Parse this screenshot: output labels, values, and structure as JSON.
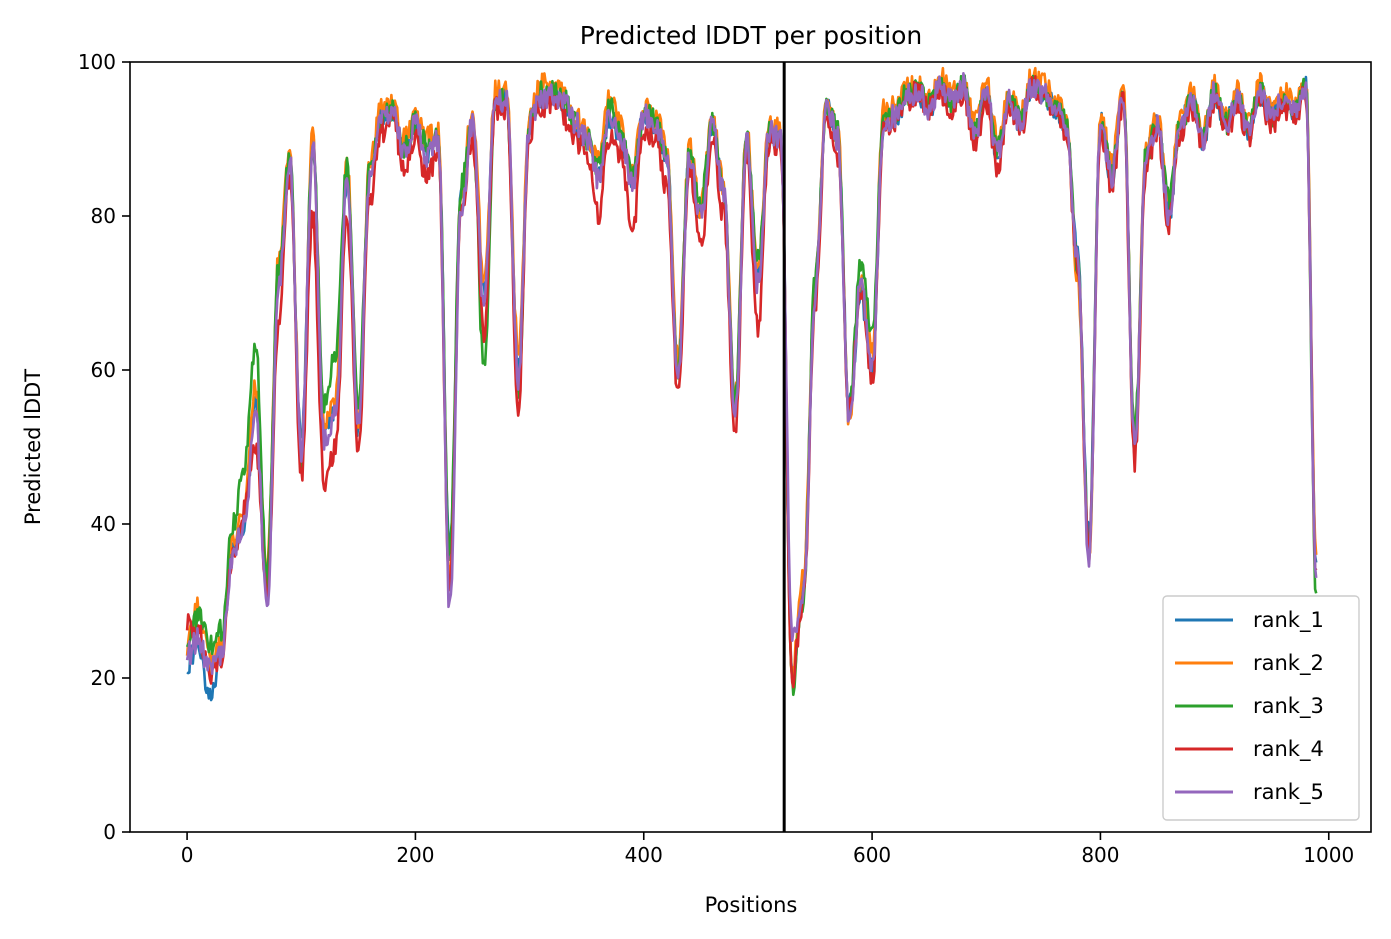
{
  "chart_data": {
    "type": "line",
    "title": "Predicted lDDT per position",
    "xlabel": "Positions",
    "ylabel": "Predicted lDDT",
    "xlim": [
      -50,
      1037
    ],
    "ylim": [
      0,
      100
    ],
    "xticks": [
      0,
      200,
      400,
      600,
      800,
      1000
    ],
    "yticks": [
      0,
      20,
      40,
      60,
      80,
      100
    ],
    "grid": false,
    "legend_position": "lower-right",
    "vline": {
      "x": 523,
      "color": "#000000"
    },
    "x_anchor": [
      0,
      10,
      20,
      30,
      40,
      50,
      60,
      70,
      80,
      90,
      100,
      110,
      120,
      130,
      140,
      150,
      160,
      170,
      180,
      190,
      200,
      210,
      220,
      230,
      240,
      250,
      260,
      270,
      280,
      290,
      300,
      310,
      320,
      330,
      340,
      350,
      360,
      370,
      380,
      390,
      400,
      410,
      420,
      430,
      440,
      450,
      460,
      470,
      480,
      490,
      500,
      510,
      520,
      530,
      540,
      550,
      560,
      570,
      580,
      590,
      600,
      610,
      620,
      630,
      640,
      650,
      660,
      670,
      680,
      690,
      700,
      710,
      720,
      730,
      740,
      750,
      760,
      770,
      780,
      790,
      800,
      810,
      820,
      830,
      840,
      850,
      860,
      870,
      880,
      890,
      900,
      910,
      920,
      930,
      940,
      950,
      960,
      970,
      980,
      989
    ],
    "series": [
      {
        "name": "rank_1",
        "color": "#1f77b4",
        "values": [
          22,
          24,
          18,
          23,
          37,
          40,
          55,
          32,
          72,
          87,
          50,
          90,
          52,
          55,
          85,
          52,
          85,
          93,
          94,
          88,
          92,
          88,
          90,
          35,
          82,
          92,
          70,
          95,
          95,
          60,
          92,
          95,
          96,
          94,
          92,
          90,
          85,
          93,
          90,
          85,
          93,
          92,
          88,
          60,
          88,
          80,
          92,
          83,
          55,
          90,
          72,
          90,
          90,
          20,
          32,
          70,
          94,
          90,
          55,
          70,
          60,
          92,
          93,
          95,
          96,
          94,
          97,
          95,
          97,
          90,
          96,
          88,
          95,
          92,
          97,
          96,
          94,
          92,
          75,
          38,
          92,
          85,
          96,
          50,
          88,
          92,
          80,
          92,
          95,
          90,
          96,
          92,
          95,
          91,
          96,
          93,
          95,
          94,
          97,
          35
        ]
      },
      {
        "name": "rank_2",
        "color": "#ff7f0e",
        "values": [
          24,
          30,
          22,
          24,
          38,
          42,
          58,
          34,
          74,
          89,
          49,
          91,
          53,
          56,
          87,
          54,
          87,
          94,
          95,
          90,
          93,
          90,
          91,
          33,
          83,
          94,
          72,
          96,
          96,
          62,
          93,
          97,
          97,
          96,
          93,
          91,
          87,
          95,
          92,
          86,
          94,
          93,
          89,
          61,
          89,
          81,
          93,
          84,
          56,
          91,
          73,
          92,
          91,
          21,
          33,
          72,
          95,
          91,
          53,
          72,
          62,
          94,
          94,
          97,
          97,
          95,
          98,
          96,
          97,
          92,
          97,
          90,
          96,
          93,
          98,
          97,
          95,
          93,
          72,
          36,
          93,
          87,
          97,
          51,
          89,
          93,
          82,
          93,
          96,
          91,
          97,
          93,
          96,
          92,
          97,
          94,
          96,
          95,
          97,
          36
        ]
      },
      {
        "name": "rank_3",
        "color": "#2ca02c",
        "values": [
          25,
          28,
          24,
          26,
          40,
          48,
          63,
          33,
          73,
          88,
          48,
          90,
          56,
          62,
          86,
          56,
          86,
          93,
          94,
          89,
          92,
          89,
          90,
          36,
          84,
          93,
          60,
          95,
          95,
          57,
          92,
          96,
          96,
          95,
          92,
          90,
          86,
          94,
          91,
          85,
          93,
          93,
          88,
          60,
          88,
          82,
          92,
          84,
          56,
          90,
          74,
          91,
          90,
          19,
          30,
          72,
          94,
          91,
          55,
          74,
          65,
          93,
          93,
          96,
          96,
          95,
          97,
          95,
          97,
          91,
          96,
          89,
          95,
          93,
          97,
          96,
          95,
          92,
          74,
          37,
          92,
          86,
          96,
          52,
          88,
          92,
          82,
          92,
          95,
          90,
          96,
          92,
          95,
          92,
          96,
          93,
          95,
          94,
          97,
          31
        ]
      },
      {
        "name": "rank_4",
        "color": "#d62728",
        "values": [
          27,
          26,
          20,
          22,
          36,
          42,
          50,
          30,
          66,
          85,
          46,
          80,
          45,
          50,
          80,
          50,
          82,
          91,
          93,
          86,
          90,
          85,
          88,
          31,
          80,
          90,
          65,
          94,
          94,
          55,
          91,
          94,
          95,
          93,
          90,
          88,
          80,
          90,
          88,
          78,
          91,
          90,
          84,
          57,
          86,
          76,
          90,
          80,
          52,
          88,
          65,
          90,
          89,
          20,
          30,
          68,
          93,
          88,
          55,
          70,
          58,
          91,
          92,
          95,
          96,
          94,
          96,
          94,
          96,
          89,
          95,
          86,
          94,
          91,
          97,
          95,
          94,
          91,
          73,
          36,
          91,
          84,
          95,
          48,
          86,
          91,
          79,
          91,
          94,
          89,
          95,
          91,
          94,
          90,
          95,
          92,
          94,
          93,
          96,
          34
        ]
      },
      {
        "name": "rank_5",
        "color": "#9467bd",
        "values": [
          23,
          25,
          21,
          23,
          36,
          40,
          54,
          29,
          71,
          87,
          49,
          89,
          51,
          54,
          84,
          53,
          85,
          92,
          94,
          88,
          92,
          88,
          90,
          29,
          81,
          92,
          68,
          95,
          95,
          59,
          92,
          95,
          96,
          95,
          92,
          90,
          85,
          93,
          90,
          84,
          93,
          92,
          88,
          59,
          88,
          80,
          92,
          83,
          54,
          90,
          71,
          91,
          90,
          25,
          31,
          70,
          94,
          90,
          54,
          71,
          60,
          92,
          93,
          96,
          96,
          94,
          97,
          95,
          97,
          90,
          96,
          88,
          95,
          92,
          97,
          96,
          94,
          92,
          74,
          35,
          92,
          85,
          96,
          50,
          88,
          92,
          80,
          92,
          95,
          90,
          96,
          92,
          95,
          91,
          96,
          93,
          95,
          94,
          97,
          33
        ]
      }
    ]
  }
}
